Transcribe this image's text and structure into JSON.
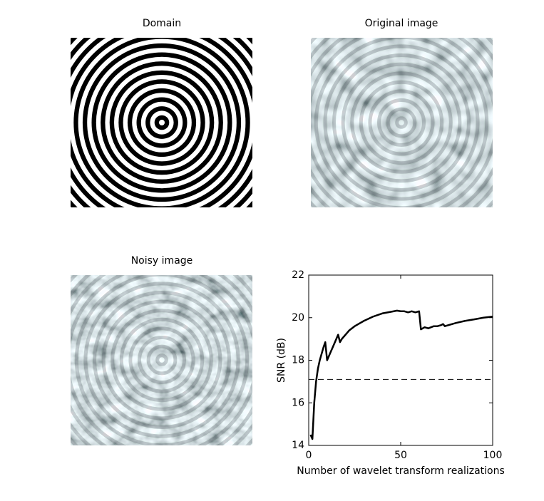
{
  "images": [
    {
      "title": "Domain"
    },
    {
      "title": "Original image"
    },
    {
      "title": "Noisy image"
    }
  ],
  "chart_data": {
    "type": "line",
    "xlabel": "Number of wavelet transform realizations",
    "ylabel": "SNR (dB)",
    "x": [
      1,
      2,
      3,
      4,
      5,
      6,
      7,
      8,
      9,
      10,
      11,
      12,
      13,
      14,
      15,
      16,
      17,
      18,
      20,
      22,
      25,
      30,
      35,
      40,
      45,
      48,
      50,
      52,
      54,
      56,
      58,
      60,
      61,
      63,
      65,
      68,
      70,
      72,
      73,
      74,
      76,
      80,
      85,
      90,
      95,
      100
    ],
    "series": [
      {
        "color": "#000000",
        "values": [
          14.5,
          14.3,
          16.0,
          17.0,
          17.6,
          18.0,
          18.3,
          18.6,
          18.85,
          18.0,
          18.2,
          18.4,
          18.6,
          18.8,
          19.0,
          19.2,
          18.85,
          19.0,
          19.2,
          19.4,
          19.6,
          19.85,
          20.05,
          20.2,
          20.28,
          20.33,
          20.3,
          20.3,
          20.25,
          20.3,
          20.25,
          20.3,
          19.45,
          19.55,
          19.5,
          19.6,
          19.6,
          19.65,
          19.7,
          19.6,
          19.65,
          19.75,
          19.85,
          19.92,
          20.0,
          20.05
        ]
      }
    ],
    "reference_line": 17.1,
    "xlim": [
      0,
      100
    ],
    "xticks": [
      0,
      50,
      100
    ],
    "ylim": [
      14,
      22
    ],
    "yticks": [
      14,
      16,
      18,
      20,
      22
    ]
  }
}
